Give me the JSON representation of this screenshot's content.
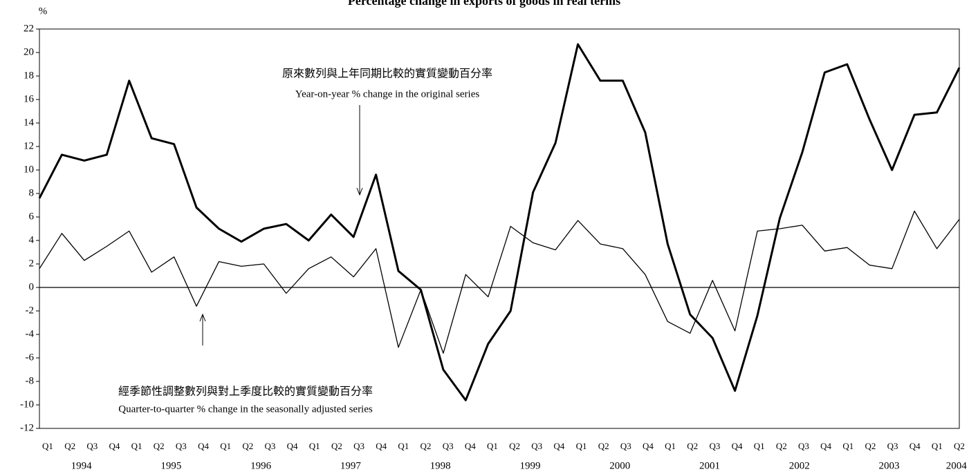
{
  "chart_data": {
    "type": "line",
    "title": "Percentage change in exports of goods in real terms",
    "y_label": "%",
    "categories": [
      "Q1",
      "Q2",
      "Q3",
      "Q4",
      "Q1",
      "Q2",
      "Q3",
      "Q4",
      "Q1",
      "Q2",
      "Q3",
      "Q4",
      "Q1",
      "Q2",
      "Q3",
      "Q4",
      "Q1",
      "Q2",
      "Q3",
      "Q4",
      "Q1",
      "Q2",
      "Q3",
      "Q4",
      "Q1",
      "Q2",
      "Q3",
      "Q4",
      "Q1",
      "Q2",
      "Q3",
      "Q4",
      "Q1",
      "Q2",
      "Q3",
      "Q4",
      "Q1",
      "Q2",
      "Q3",
      "Q4",
      "Q1",
      "Q2"
    ],
    "years": [
      "1994",
      "1995",
      "1996",
      "1997",
      "1998",
      "1999",
      "2000",
      "2001",
      "2002",
      "2003",
      "2004"
    ],
    "series": [
      {
        "name": "Year-on-year % change in the original series",
        "name_zh": "原來數列與上年同期比較的實質變動百分率",
        "color": "#000000",
        "width": 3,
        "values": [
          7.6,
          11.3,
          10.8,
          11.3,
          17.6,
          12.7,
          12.2,
          6.8,
          5.0,
          3.9,
          5.0,
          5.4,
          4.0,
          6.2,
          4.3,
          9.6,
          1.4,
          -0.2,
          -7.0,
          -9.6,
          -4.8,
          -2.0,
          8.1,
          12.3,
          20.7,
          17.6,
          17.6,
          13.2,
          3.7,
          -2.3,
          -4.3,
          -8.8,
          -2.4,
          5.9,
          11.5,
          18.3,
          19.0,
          14.3,
          10.0,
          14.7,
          14.9,
          18.7
        ]
      },
      {
        "name": "Quarter-to-quarter % change in the seasonally adjusted series",
        "name_zh": "經季節性調整數列與對上季度比較的實質變動百分率",
        "color": "#000000",
        "width": 1.3,
        "values": [
          1.6,
          4.6,
          2.3,
          3.5,
          4.8,
          1.3,
          2.6,
          -1.6,
          2.2,
          1.8,
          2.0,
          -0.5,
          1.6,
          2.6,
          0.9,
          3.3,
          -5.1,
          -0.2,
          -5.6,
          1.1,
          -0.8,
          5.2,
          3.8,
          3.2,
          5.7,
          3.7,
          3.3,
          1.1,
          -2.9,
          -3.9,
          0.6,
          -3.7,
          4.8,
          5.0,
          5.3,
          3.1,
          3.4,
          1.9,
          1.6,
          6.5,
          3.3,
          5.8
        ]
      }
    ],
    "ylim": [
      -12,
      22
    ],
    "yticks": [
      -12,
      -10,
      -8,
      -6,
      -4,
      -2,
      0,
      2,
      4,
      6,
      8,
      10,
      12,
      14,
      16,
      18,
      20,
      22
    ],
    "zero_line": true
  }
}
